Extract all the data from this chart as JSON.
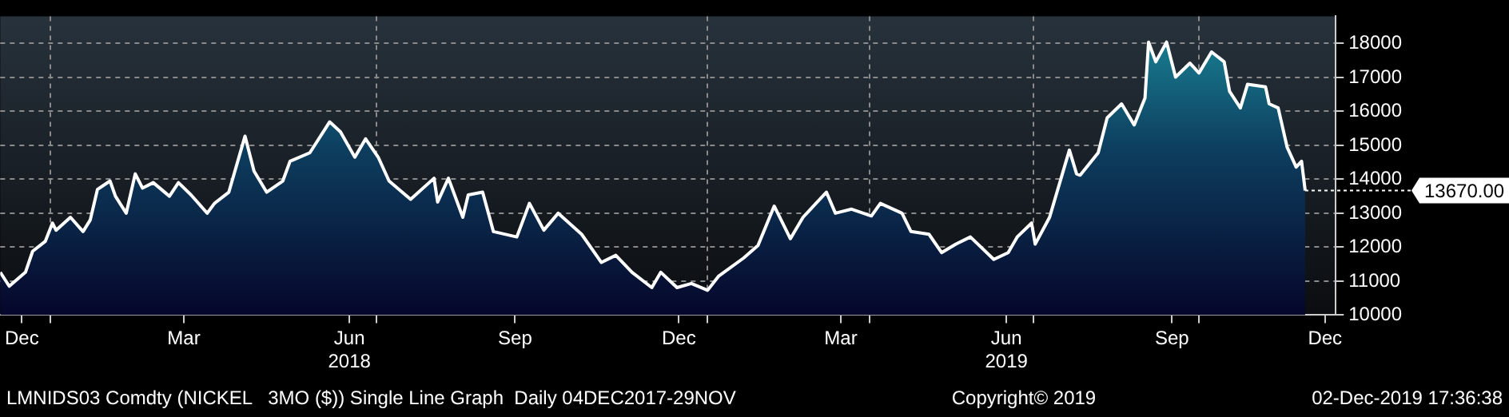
{
  "chart_data": {
    "type": "area",
    "x": [
      "2017-12-04",
      "2017-12-09",
      "2017-12-18",
      "2017-12-22",
      "2017-12-29",
      "2018-01-02",
      "2018-01-04",
      "2018-01-12",
      "2018-01-19",
      "2018-01-23",
      "2018-01-27",
      "2018-02-03",
      "2018-02-06",
      "2018-02-12",
      "2018-02-17",
      "2018-02-21",
      "2018-02-27",
      "2018-03-08",
      "2018-03-13",
      "2018-03-20",
      "2018-03-29",
      "2018-04-02",
      "2018-04-10",
      "2018-04-19",
      "2018-04-24",
      "2018-05-01",
      "2018-05-10",
      "2018-05-14",
      "2018-05-25",
      "2018-06-05",
      "2018-06-11",
      "2018-06-19",
      "2018-06-25",
      "2018-07-02",
      "2018-07-08",
      "2018-07-20",
      "2018-08-02",
      "2018-08-04",
      "2018-08-10",
      "2018-08-18",
      "2018-08-21",
      "2018-08-29",
      "2018-09-04",
      "2018-09-17",
      "2018-09-24",
      "2018-10-02",
      "2018-10-10",
      "2018-10-23",
      "2018-11-03",
      "2018-11-11",
      "2018-11-20",
      "2018-12-01",
      "2018-12-06",
      "2018-12-15",
      "2018-12-23",
      "2019-01-01",
      "2019-01-07",
      "2019-01-21",
      "2019-01-29",
      "2019-02-07",
      "2019-02-16",
      "2019-02-23",
      "2019-03-08",
      "2019-03-13",
      "2019-03-22",
      "2019-04-02",
      "2019-04-07",
      "2019-04-19",
      "2019-04-24",
      "2019-05-04",
      "2019-05-11",
      "2019-05-19",
      "2019-05-27",
      "2019-06-09",
      "2019-06-17",
      "2019-06-22",
      "2019-06-30",
      "2019-07-02",
      "2019-07-10",
      "2019-07-21",
      "2019-07-25",
      "2019-07-27",
      "2019-08-06",
      "2019-08-11",
      "2019-08-19",
      "2019-08-26",
      "2019-09-01",
      "2019-09-03",
      "2019-09-07",
      "2019-09-13",
      "2019-09-18",
      "2019-09-26",
      "2019-10-01",
      "2019-10-08",
      "2019-10-15",
      "2019-10-18",
      "2019-10-24",
      "2019-10-28",
      "2019-11-07",
      "2019-11-09",
      "2019-11-14",
      "2019-11-19",
      "2019-11-24",
      "2019-11-27",
      "2019-11-29"
    ],
    "series": [
      {
        "color": "#ffffff",
        "values": [
          11260,
          10850,
          11260,
          11880,
          12170,
          12710,
          12500,
          12880,
          12460,
          12800,
          13700,
          13950,
          13500,
          13000,
          14160,
          13740,
          13900,
          13500,
          13900,
          13540,
          13000,
          13290,
          13620,
          15270,
          14240,
          13620,
          13950,
          14530,
          14780,
          15690,
          15400,
          14650,
          15190,
          14650,
          13950,
          13410,
          14030,
          13330,
          14030,
          12880,
          13540,
          13620,
          12460,
          12300,
          13290,
          12500,
          13000,
          12380,
          11550,
          11760,
          11260,
          10810,
          11260,
          10810,
          10930,
          10730,
          11140,
          11680,
          12050,
          13210,
          12250,
          12880,
          13620,
          13000,
          13120,
          12920,
          13290,
          13000,
          12460,
          12380,
          11840,
          12090,
          12300,
          11640,
          11840,
          12300,
          12710,
          12090,
          12880,
          14860,
          14160,
          14120,
          14780,
          15810,
          16220,
          15600,
          16390,
          18040,
          17460,
          18040,
          17010,
          17420,
          17130,
          17750,
          17460,
          16590,
          16100,
          16800,
          16720,
          16220,
          16100,
          14940,
          14360,
          14530,
          13670
        ]
      }
    ],
    "xlim": [
      "2017-12-04",
      "2019-12-16"
    ],
    "xticks": [
      {
        "value": "2017-12-16",
        "label": "Dec"
      },
      {
        "value": "2018-01-01",
        "label": null
      },
      {
        "value": "2018-03-16",
        "label": "Mar"
      },
      {
        "value": "2018-06-16",
        "label": "Jun\n2018"
      },
      {
        "value": "2018-07-01",
        "label": null
      },
      {
        "value": "2018-09-16",
        "label": "Sep"
      },
      {
        "value": "2018-12-16",
        "label": "Dec"
      },
      {
        "value": "2019-01-01",
        "label": null
      },
      {
        "value": "2019-03-16",
        "label": "Mar"
      },
      {
        "value": "2019-04-01",
        "label": null
      },
      {
        "value": "2019-06-16",
        "label": "Jun\n2019"
      },
      {
        "value": "2019-07-01",
        "label": null
      },
      {
        "value": "2019-09-16",
        "label": "Sep"
      },
      {
        "value": "2019-10-01",
        "label": null
      },
      {
        "value": "2019-12-10",
        "label": "Dec"
      }
    ],
    "ylim": [
      10000,
      18800
    ],
    "yticks": [
      10000,
      11000,
      12000,
      13000,
      14000,
      15000,
      16000,
      17000,
      18000
    ],
    "grid": true,
    "line_style": "solid",
    "annotations": [
      {
        "text": "13670.00",
        "x": "2019-11-29",
        "y": 13670
      },
      "LMNIDS03 Comdty (NICKEL   3MO ($)) Single Line Graph  Daily 04DEC2017-29NOV",
      "Copyright© 2019",
      "02-Dec-2019 17:36:38"
    ]
  }
}
